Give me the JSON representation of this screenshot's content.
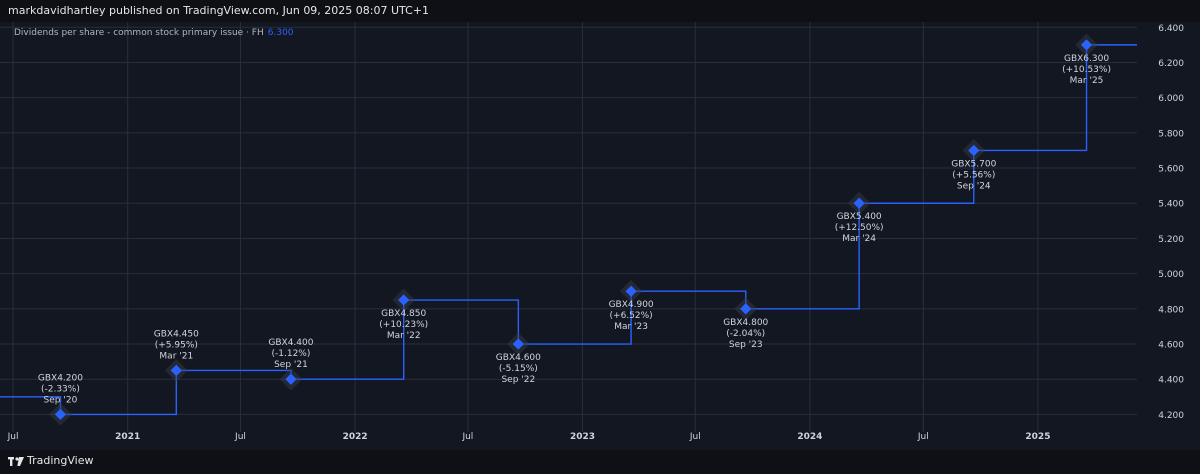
{
  "header": {
    "attribution": "markdavidhartley published on TradingView.com, Jun 09, 2025 08:07 UTC+1"
  },
  "legend": {
    "series_name": "Dividends per share - common stock primary issue · FH",
    "last_value": "6.300"
  },
  "footer": {
    "brand": "TradingView"
  },
  "colors": {
    "background": "#131722",
    "line": "#2962ff",
    "marker": "#2962ff",
    "grid": "#2a2e39"
  },
  "chart_data": {
    "type": "line",
    "step": true,
    "title": "",
    "ylim": [
      4.1,
      6.43
    ],
    "x_range": [
      "2020-06-10",
      "2025-06-09"
    ],
    "y_ticks": [
      "4.200",
      "4.400",
      "4.600",
      "4.800",
      "5.000",
      "5.200",
      "5.400",
      "5.600",
      "5.800",
      "6.000",
      "6.200",
      "6.400"
    ],
    "x_ticks": [
      {
        "label": "Jul",
        "date": "2020-07-01"
      },
      {
        "label": "2021",
        "date": "2021-01-01"
      },
      {
        "label": "Jul",
        "date": "2021-07-01"
      },
      {
        "label": "2022",
        "date": "2022-01-01"
      },
      {
        "label": "Jul",
        "date": "2022-07-01"
      },
      {
        "label": "2023",
        "date": "2023-01-01"
      },
      {
        "label": "Jul",
        "date": "2023-07-01"
      },
      {
        "label": "2024",
        "date": "2024-01-01"
      },
      {
        "label": "Jul",
        "date": "2024-07-01"
      },
      {
        "label": "2025",
        "date": "2025-01-01"
      }
    ],
    "line_start": {
      "date": "2020-06-10",
      "value": 4.3
    },
    "line_end": {
      "date": "2025-06-09",
      "value": 6.3
    },
    "points": [
      {
        "date": "2020-09-15",
        "value": 4.2,
        "label": "GBX4.200",
        "change": "(-2.33%)",
        "period": "Sep '20",
        "label_pos": "above"
      },
      {
        "date": "2021-03-20",
        "value": 4.45,
        "label": "GBX4.450",
        "change": "(+5.95%)",
        "period": "Mar '21",
        "label_pos": "above"
      },
      {
        "date": "2021-09-20",
        "value": 4.4,
        "label": "GBX4.400",
        "change": "(-1.12%)",
        "period": "Sep '21",
        "label_pos": "above"
      },
      {
        "date": "2022-03-20",
        "value": 4.85,
        "label": "GBX4.850",
        "change": "(+10.23%)",
        "period": "Mar '22",
        "label_pos": "below"
      },
      {
        "date": "2022-09-20",
        "value": 4.6,
        "label": "GBX4.600",
        "change": "(-5.15%)",
        "period": "Sep '22",
        "label_pos": "below"
      },
      {
        "date": "2023-03-20",
        "value": 4.9,
        "label": "GBX4.900",
        "change": "(+6.52%)",
        "period": "Mar '23",
        "label_pos": "below"
      },
      {
        "date": "2023-09-20",
        "value": 4.8,
        "label": "GBX4.800",
        "change": "(-2.04%)",
        "period": "Sep '23",
        "label_pos": "below"
      },
      {
        "date": "2024-03-20",
        "value": 5.4,
        "label": "GBX5.400",
        "change": "(+12.50%)",
        "period": "Mar '24",
        "label_pos": "below"
      },
      {
        "date": "2024-09-20",
        "value": 5.7,
        "label": "GBX5.700",
        "change": "(+5.56%)",
        "period": "Sep '24",
        "label_pos": "below"
      },
      {
        "date": "2025-03-20",
        "value": 6.3,
        "label": "GBX6.300",
        "change": "(+10.53%)",
        "period": "Mar '25",
        "label_pos": "below"
      }
    ]
  }
}
